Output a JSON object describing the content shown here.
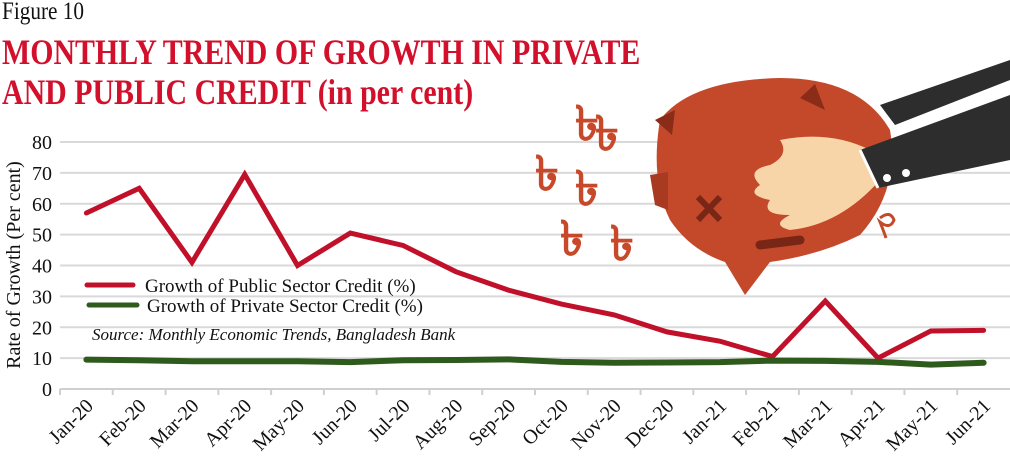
{
  "figure_label": "Figure 10",
  "title_line1": "MONTHLY TREND OF GROWTH IN PRIVATE",
  "title_line2": "AND PUBLIC CREDIT (in per cent)",
  "source": "Source: Monthly Economic Trends, Bangladesh Bank",
  "colors": {
    "public": "#c0102a",
    "private": "#2e5a1c",
    "title": "#d3102c",
    "grid": "#d9d9d9"
  },
  "chart_data": {
    "type": "line",
    "title": "MONTHLY TREND OF GROWTH IN PRIVATE AND PUBLIC CREDIT (in per cent)",
    "xlabel": "",
    "ylabel": "Rate of Growth (Per cent)",
    "ylim": [
      0,
      80
    ],
    "yticks": [
      0,
      10,
      20,
      30,
      40,
      50,
      60,
      70,
      80
    ],
    "grid": true,
    "legend_placement": "center-left",
    "categories": [
      "Jan-20",
      "Feb-20",
      "Mar-20",
      "Apr-20",
      "May-20",
      "Jun-20",
      "Jul-20",
      "Aug-20",
      "Sep-20",
      "Oct-20",
      "Nov-20",
      "Dec-20",
      "Jan-21",
      "Feb-21",
      "Mar-21",
      "Apr-21",
      "May-21",
      "Jun-21"
    ],
    "series": [
      {
        "name": "Growth of Public Sector Credit (%)",
        "values": [
          57,
          65,
          41,
          69.5,
          40,
          50.5,
          46.5,
          38,
          32,
          27.5,
          24,
          18.5,
          15.5,
          10.5,
          28.5,
          10,
          18.8,
          19
        ]
      },
      {
        "name": "Growth of Private Sector Credit (%)",
        "values": [
          9.5,
          9.3,
          9.0,
          9.0,
          9.0,
          8.7,
          9.3,
          9.4,
          9.6,
          8.8,
          8.5,
          8.6,
          8.7,
          9.2,
          9.1,
          8.8,
          7.9,
          8.5
        ]
      }
    ]
  }
}
